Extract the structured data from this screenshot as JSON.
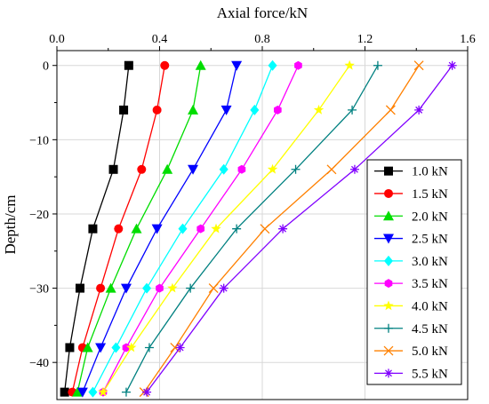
{
  "chart_data": {
    "type": "line",
    "xlabel": "Axial force/kN",
    "ylabel": "Depth/cm",
    "xlim": [
      0,
      1.6
    ],
    "ylim": [
      -45,
      2
    ],
    "x_axis_position": "top",
    "x_ticks": [
      0.0,
      0.4,
      0.8,
      1.2,
      1.6
    ],
    "x_tick_labels": [
      "0.0",
      "0.4",
      "0.8",
      "1.2",
      "1.6"
    ],
    "y_ticks": [
      0,
      -10,
      -20,
      -30,
      -40
    ],
    "y_tick_labels": [
      "0",
      "−10",
      "−20",
      "−30",
      "−40"
    ],
    "grid": true,
    "legend_position": "right",
    "depths": [
      0,
      -6,
      -14,
      -22,
      -30,
      -38,
      -44
    ],
    "series": [
      {
        "name": "1.0 kN",
        "marker": "square",
        "color": "#000000",
        "values": [
          0.28,
          0.26,
          0.22,
          0.14,
          0.09,
          0.05,
          0.03
        ]
      },
      {
        "name": "1.5 kN",
        "marker": "circle",
        "color": "#ff0000",
        "values": [
          0.42,
          0.39,
          0.33,
          0.24,
          0.17,
          0.1,
          0.06
        ]
      },
      {
        "name": "2.0 kN",
        "marker": "triangle-up",
        "color": "#00dd00",
        "values": [
          0.56,
          0.53,
          0.43,
          0.31,
          0.21,
          0.12,
          0.08
        ]
      },
      {
        "name": "2.5 kN",
        "marker": "triangle-down",
        "color": "#0000ff",
        "values": [
          0.7,
          0.66,
          0.53,
          0.39,
          0.27,
          0.17,
          0.1
        ]
      },
      {
        "name": "3.0 kN",
        "marker": "diamond",
        "color": "#00ffff",
        "values": [
          0.84,
          0.77,
          0.65,
          0.49,
          0.35,
          0.23,
          0.14
        ]
      },
      {
        "name": "3.5 kN",
        "marker": "hexagon",
        "color": "#ff00ff",
        "values": [
          0.94,
          0.86,
          0.72,
          0.56,
          0.4,
          0.27,
          0.18
        ]
      },
      {
        "name": "4.0 kN",
        "marker": "star",
        "color": "#ffff00",
        "values": [
          1.14,
          1.02,
          0.84,
          0.62,
          0.45,
          0.29,
          0.18
        ]
      },
      {
        "name": "4.5 kN",
        "marker": "plus",
        "color": "#008080",
        "values": [
          1.25,
          1.15,
          0.93,
          0.7,
          0.52,
          0.36,
          0.27
        ]
      },
      {
        "name": "5.0 kN",
        "marker": "x",
        "color": "#ff8000",
        "values": [
          1.41,
          1.3,
          1.07,
          0.81,
          0.61,
          0.46,
          0.34
        ]
      },
      {
        "name": "5.5 kN",
        "marker": "asterisk",
        "color": "#8000ff",
        "values": [
          1.54,
          1.41,
          1.16,
          0.88,
          0.65,
          0.48,
          0.35
        ]
      }
    ]
  }
}
